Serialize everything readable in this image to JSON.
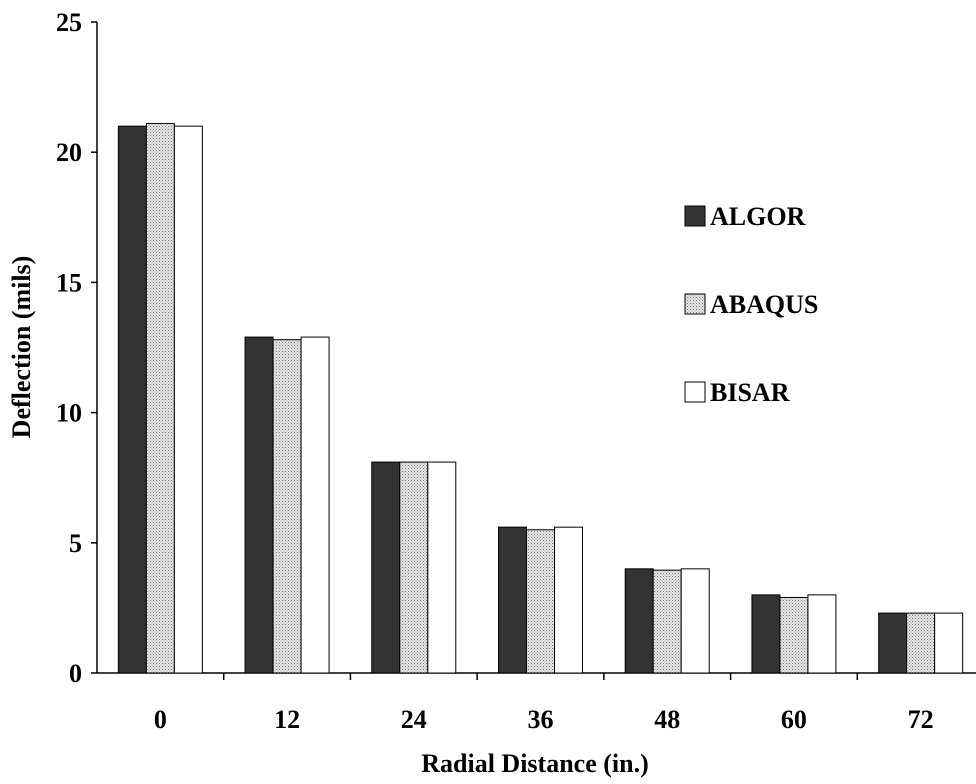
{
  "chart_data": {
    "type": "bar",
    "title": "",
    "xlabel": "Radial Distance (in.)",
    "ylabel": "Deflection (mils)",
    "categories": [
      "0",
      "12",
      "24",
      "36",
      "48",
      "60",
      "72"
    ],
    "ylim": [
      0,
      25
    ],
    "yticks": [
      "0",
      "5",
      "10",
      "15",
      "20",
      "25"
    ],
    "grid": false,
    "legend_position": "right",
    "series": [
      {
        "name": "ALGOR",
        "values": [
          21.0,
          12.9,
          8.1,
          5.6,
          4.0,
          3.0,
          2.3
        ],
        "color": "#333333",
        "pattern": "solid"
      },
      {
        "name": "ABAQUS",
        "values": [
          21.1,
          12.8,
          8.1,
          5.5,
          3.95,
          2.9,
          2.3
        ],
        "color": "#cfcfcf",
        "pattern": "dotted"
      },
      {
        "name": "BISAR",
        "values": [
          21.0,
          12.9,
          8.1,
          5.6,
          4.0,
          3.0,
          2.3
        ],
        "color": "#ffffff",
        "pattern": "outline"
      }
    ]
  }
}
